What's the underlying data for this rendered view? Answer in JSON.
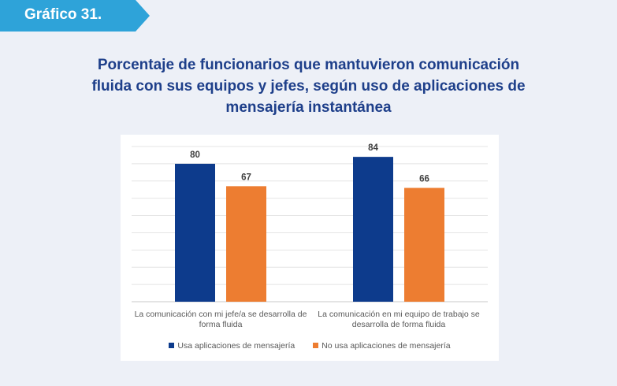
{
  "badge": {
    "label": "Gráfico 31."
  },
  "title_lines": [
    "Porcentaje de funcionarios que mantuvieron comunicación",
    "fluida con sus equipos y jefes, según uso de aplicaciones de",
    "mensajería instantánea"
  ],
  "colors": {
    "badge": "#2ea3d9",
    "title": "#1e3f8a",
    "series_1": "#0d3b8c",
    "series_2": "#ed7d31",
    "background": "#edf0f7"
  },
  "chart_data": {
    "type": "bar",
    "title": "Porcentaje de funcionarios que mantuvieron comunicación fluida con sus equipos y jefes, según uso de aplicaciones de mensajería instantánea",
    "categories": [
      "La comunicación con mi jefe/a se desarrolla de forma fluida",
      "La comunicación en mi equipo de trabajo se desarrolla de forma fluida"
    ],
    "series": [
      {
        "name": "Usa aplicaciones de mensajería",
        "values": [
          80,
          84
        ],
        "color": "#0d3b8c"
      },
      {
        "name": "No usa aplicaciones de mensajería",
        "values": [
          67,
          66
        ],
        "color": "#ed7d31"
      }
    ],
    "ylim": [
      0,
      90
    ],
    "grid": true,
    "legend": "bottom",
    "xlabel": "",
    "ylabel": ""
  }
}
